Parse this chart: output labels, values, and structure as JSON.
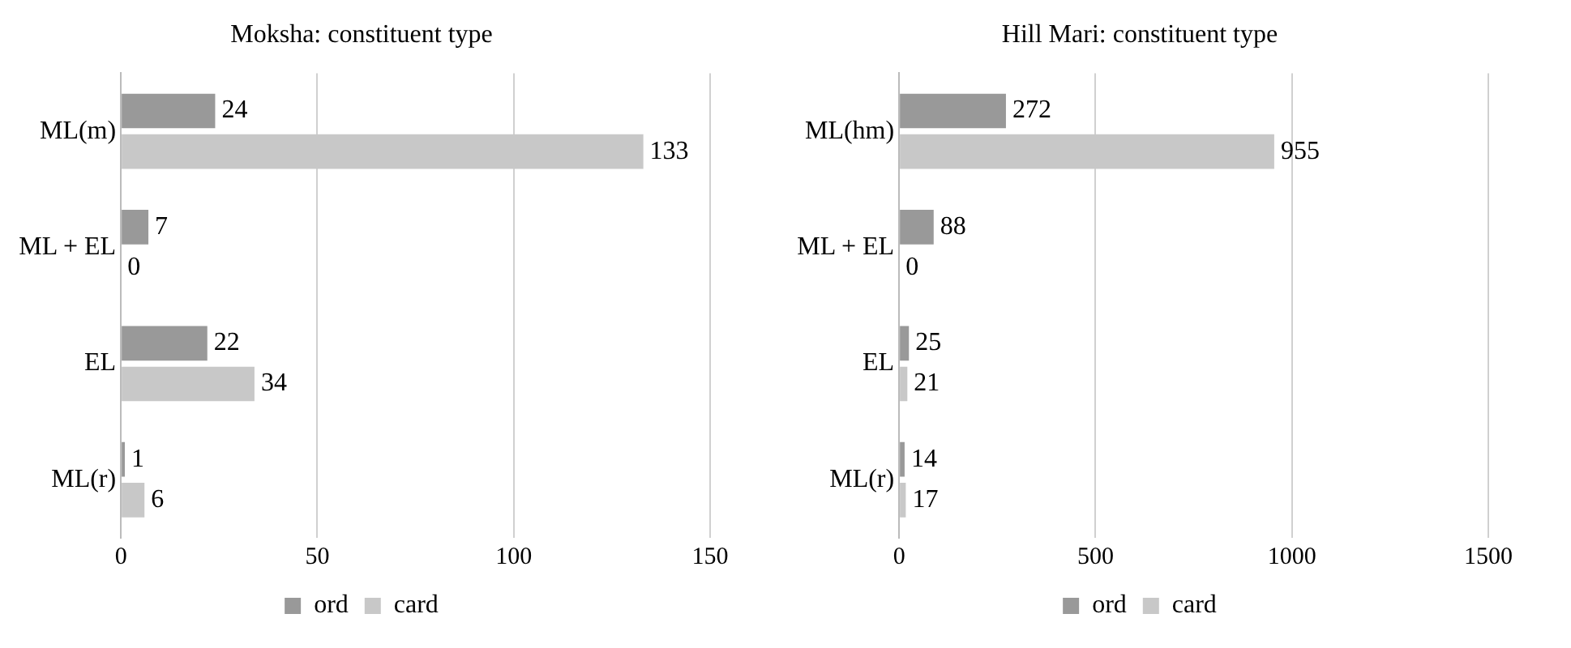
{
  "chart_data": [
    {
      "type": "bar",
      "orientation": "horizontal",
      "title": "Moksha: constituent type",
      "categories": [
        "ML(m)",
        "ML + EL",
        "EL",
        "ML(r)"
      ],
      "series": [
        {
          "name": "ord",
          "color": "#999999",
          "values": [
            24,
            7,
            22,
            1
          ]
        },
        {
          "name": "card",
          "color": "#c8c8c8",
          "values": [
            133,
            0,
            34,
            6
          ]
        }
      ],
      "xlim": [
        0,
        150
      ],
      "xticks": [
        0,
        50,
        100,
        150
      ],
      "grid": "x",
      "legend": "bottom",
      "data_labels": true
    },
    {
      "type": "bar",
      "orientation": "horizontal",
      "title": "Hill Mari: constituent type",
      "categories": [
        "ML(hm)",
        "ML + EL",
        "EL",
        "ML(r)"
      ],
      "series": [
        {
          "name": "ord",
          "color": "#999999",
          "values": [
            272,
            88,
            25,
            14
          ]
        },
        {
          "name": "card",
          "color": "#c8c8c8",
          "values": [
            955,
            0,
            21,
            17
          ]
        }
      ],
      "xlim": [
        0,
        1500
      ],
      "xticks": [
        0,
        500,
        1000,
        1500
      ],
      "grid": "x",
      "legend": "bottom",
      "data_labels": true
    }
  ]
}
